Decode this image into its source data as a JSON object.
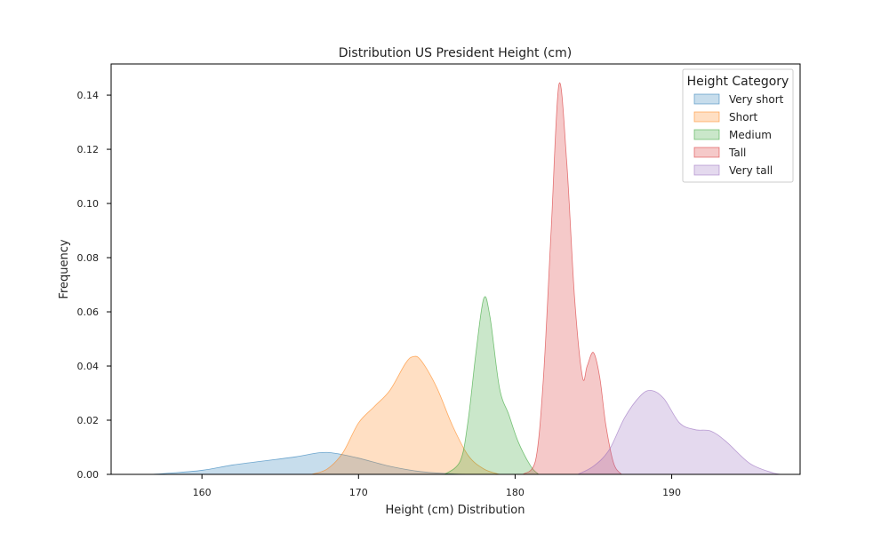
{
  "chart_data": {
    "type": "area",
    "title": "Distribution US President Height (cm)",
    "xlabel": "Height (cm) Distribution",
    "ylabel": "Frequency",
    "xlim": [
      154.2,
      198.2
    ],
    "ylim": [
      0,
      0.1515
    ],
    "xticks": [
      160,
      170,
      180,
      190
    ],
    "yticks": [
      0.0,
      0.02,
      0.04,
      0.06,
      0.08,
      0.1,
      0.12,
      0.14
    ],
    "ytick_labels": [
      "0.00",
      "0.02",
      "0.04",
      "0.06",
      "0.08",
      "0.10",
      "0.12",
      "0.14"
    ],
    "grid": false,
    "legend": {
      "title": "Height Category",
      "placement": "top-right"
    },
    "series": [
      {
        "name": "Very short",
        "color": "#1f77b4",
        "points": [
          [
            156.8,
            0
          ],
          [
            158,
            0.0005
          ],
          [
            160,
            0.0015
          ],
          [
            162,
            0.0035
          ],
          [
            164,
            0.005
          ],
          [
            166,
            0.0065
          ],
          [
            167.5,
            0.008
          ],
          [
            168.5,
            0.0078
          ],
          [
            170,
            0.006
          ],
          [
            172,
            0.003
          ],
          [
            174,
            0.001
          ],
          [
            176,
            0.0002
          ],
          [
            177,
            0
          ]
        ]
      },
      {
        "name": "Short",
        "color": "#ff7f0e",
        "points": [
          [
            167,
            0
          ],
          [
            168,
            0.002
          ],
          [
            169,
            0.008
          ],
          [
            170,
            0.019
          ],
          [
            171,
            0.025
          ],
          [
            172,
            0.031
          ],
          [
            173,
            0.041
          ],
          [
            173.5,
            0.0435
          ],
          [
            174,
            0.042
          ],
          [
            175,
            0.032
          ],
          [
            176,
            0.018
          ],
          [
            177,
            0.007
          ],
          [
            178,
            0.002
          ],
          [
            179,
            0
          ]
        ]
      },
      {
        "name": "Medium",
        "color": "#2ca02c",
        "points": [
          [
            175.5,
            0
          ],
          [
            176.5,
            0.005
          ],
          [
            177,
            0.02
          ],
          [
            177.5,
            0.045
          ],
          [
            178,
            0.065
          ],
          [
            178.4,
            0.058
          ],
          [
            179,
            0.032
          ],
          [
            179.6,
            0.022
          ],
          [
            180.2,
            0.012
          ],
          [
            181,
            0.003
          ],
          [
            181.5,
            0
          ]
        ]
      },
      {
        "name": "Tall",
        "color": "#d62728",
        "points": [
          [
            180.5,
            0
          ],
          [
            181.3,
            0.005
          ],
          [
            181.8,
            0.035
          ],
          [
            182.3,
            0.09
          ],
          [
            182.8,
            0.144
          ],
          [
            183.3,
            0.115
          ],
          [
            183.8,
            0.065
          ],
          [
            184.3,
            0.036
          ],
          [
            184.6,
            0.04
          ],
          [
            185,
            0.045
          ],
          [
            185.4,
            0.036
          ],
          [
            185.8,
            0.018
          ],
          [
            186.3,
            0.004
          ],
          [
            186.8,
            0
          ]
        ]
      },
      {
        "name": "Very tall",
        "color": "#9467bd",
        "points": [
          [
            184,
            0
          ],
          [
            185,
            0.003
          ],
          [
            186,
            0.009
          ],
          [
            187,
            0.021
          ],
          [
            188,
            0.029
          ],
          [
            188.7,
            0.031
          ],
          [
            189.5,
            0.028
          ],
          [
            190.5,
            0.019
          ],
          [
            191.5,
            0.0165
          ],
          [
            192.5,
            0.016
          ],
          [
            193.5,
            0.012
          ],
          [
            195,
            0.004
          ],
          [
            196.5,
            0.0005
          ],
          [
            197,
            0
          ]
        ]
      }
    ]
  }
}
